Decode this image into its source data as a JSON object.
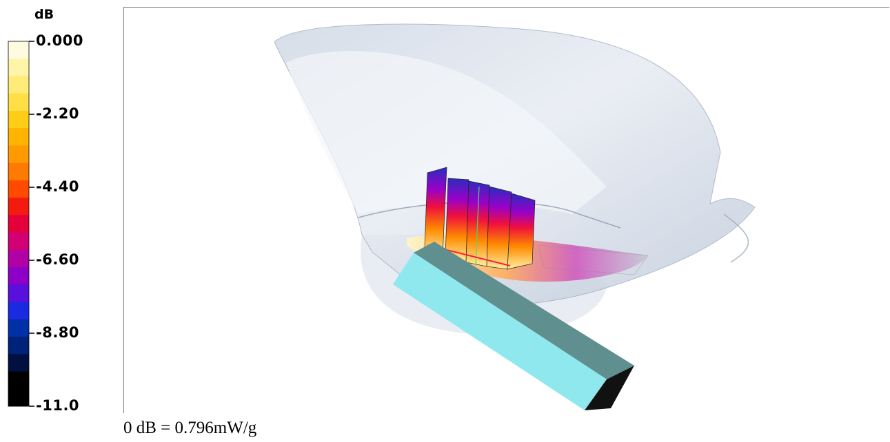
{
  "chart_data": {
    "type": "heatmap",
    "colorbar": {
      "unit": "dB",
      "range": [
        -11.0,
        0.0
      ],
      "tick_labels": [
        "0.000",
        "-2.20",
        "-4.40",
        "-6.60",
        "-8.80",
        "-11.0"
      ],
      "colors": [
        "#fffbe0",
        "#fff5a8",
        "#ffec78",
        "#ffdf45",
        "#ffcc17",
        "#ffb400",
        "#ff9a00",
        "#ff7a00",
        "#ff4a00",
        "#f41a10",
        "#e3003b",
        "#d10074",
        "#b000a6",
        "#8c00c8",
        "#5a10dc",
        "#1a2ae0",
        "#0030a8",
        "#002278",
        "#001040",
        "#000000",
        "#000000"
      ]
    }
  },
  "caption": "0 dB = 0.796mW/g"
}
